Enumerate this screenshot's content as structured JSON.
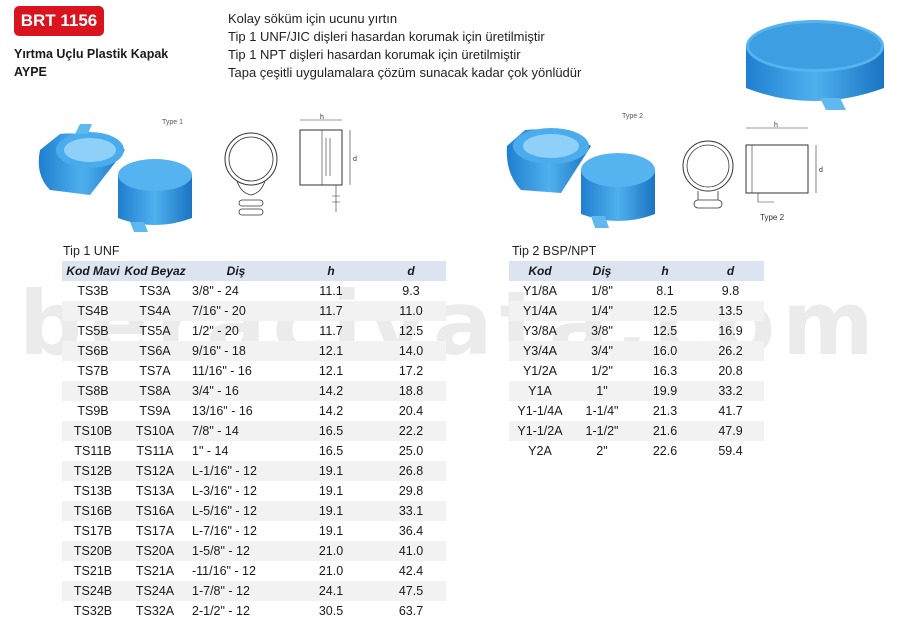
{
  "product": {
    "code": "BRT 1156",
    "name": "Yırtma Uçlu Plastik Kapak",
    "type": "AYPE"
  },
  "features": [
    "Kolay söküm için ucunu yırtın",
    "Tip 1 UNF/JIC dişleri hasardan korumak için üretilmiştir",
    "Tip 1 NPT dişleri hasardan korumak için üretilmiştir",
    "Tapa çeşitli uygulamalara çözüm sunacak kadar çok yönlüdür"
  ],
  "watermark": "beracivata.com",
  "colors": {
    "accent": "#d9141e",
    "cap_blue": "#3a9be0",
    "header_bg": "#dbe4f0"
  },
  "diagram_labels": {
    "type1": "Type 1",
    "type2": "Type 2",
    "type2_side": "Type 2",
    "h": "h",
    "d": "d"
  },
  "table1": {
    "title": "Tip 1 UNF",
    "headers": [
      "Kod Mavi",
      "Kod Beyaz",
      "Diş",
      "h",
      "d"
    ],
    "rows": [
      [
        "TS3B",
        "TS3A",
        "3/8\" - 24",
        "11.1",
        "9.3"
      ],
      [
        "TS4B",
        "TS4A",
        "7/16\" - 20",
        "11.7",
        "11.0"
      ],
      [
        "TS5B",
        "TS5A",
        "1/2\" - 20",
        "11.7",
        "12.5"
      ],
      [
        "TS6B",
        "TS6A",
        "9/16\" - 18",
        "12.1",
        "14.0"
      ],
      [
        "TS7B",
        "TS7A",
        "11/16\" - 16",
        "12.1",
        "17.2"
      ],
      [
        "TS8B",
        "TS8A",
        "3/4\" - 16",
        "14.2",
        "18.8"
      ],
      [
        "TS9B",
        "TS9A",
        "13/16\" - 16",
        "14.2",
        "20.4"
      ],
      [
        "TS10B",
        "TS10A",
        "7/8\" - 14",
        "16.5",
        "22.2"
      ],
      [
        "TS11B",
        "TS11A",
        "1\" - 14",
        "16.5",
        "25.0"
      ],
      [
        "TS12B",
        "TS12A",
        "L-1/16\" - 12",
        "19.1",
        "26.8"
      ],
      [
        "TS13B",
        "TS13A",
        "L-3/16\" - 12",
        "19.1",
        "29.8"
      ],
      [
        "TS16B",
        "TS16A",
        "L-5/16\" - 12",
        "19.1",
        "33.1"
      ],
      [
        "TS17B",
        "TS17A",
        "L-7/16\" - 12",
        "19.1",
        "36.4"
      ],
      [
        "TS20B",
        "TS20A",
        "1-5/8\" - 12",
        "21.0",
        "41.0"
      ],
      [
        "TS21B",
        "TS21A",
        "-11/16\" - 12",
        "21.0",
        "42.4"
      ],
      [
        "TS24B",
        "TS24A",
        "1-7/8\" - 12",
        "24.1",
        "47.5"
      ],
      [
        "TS32B",
        "TS32A",
        "2-1/2\" - 12",
        "30.5",
        "63.7"
      ]
    ]
  },
  "table2": {
    "title": "Tip 2 BSP/NPT",
    "headers": [
      "Kod",
      "Diş",
      "h",
      "d"
    ],
    "rows": [
      [
        "Y1/8A",
        "1/8\"",
        "8.1",
        "9.8"
      ],
      [
        "Y1/4A",
        "1/4\"",
        "12.5",
        "13.5"
      ],
      [
        "Y3/8A",
        "3/8\"",
        "12.5",
        "16.9"
      ],
      [
        "Y3/4A",
        "3/4\"",
        "16.0",
        "26.2"
      ],
      [
        "Y1/2A",
        "1/2\"",
        "16.3",
        "20.8"
      ],
      [
        "Y1A",
        "1\"",
        "19.9",
        "33.2"
      ],
      [
        "Y1-1/4A",
        "1-1/4\"",
        "21.3",
        "41.7"
      ],
      [
        "Y1-1/2A",
        "1-1/2\"",
        "21.6",
        "47.9"
      ],
      [
        "Y2A",
        "2\"",
        "22.6",
        "59.4"
      ]
    ]
  }
}
